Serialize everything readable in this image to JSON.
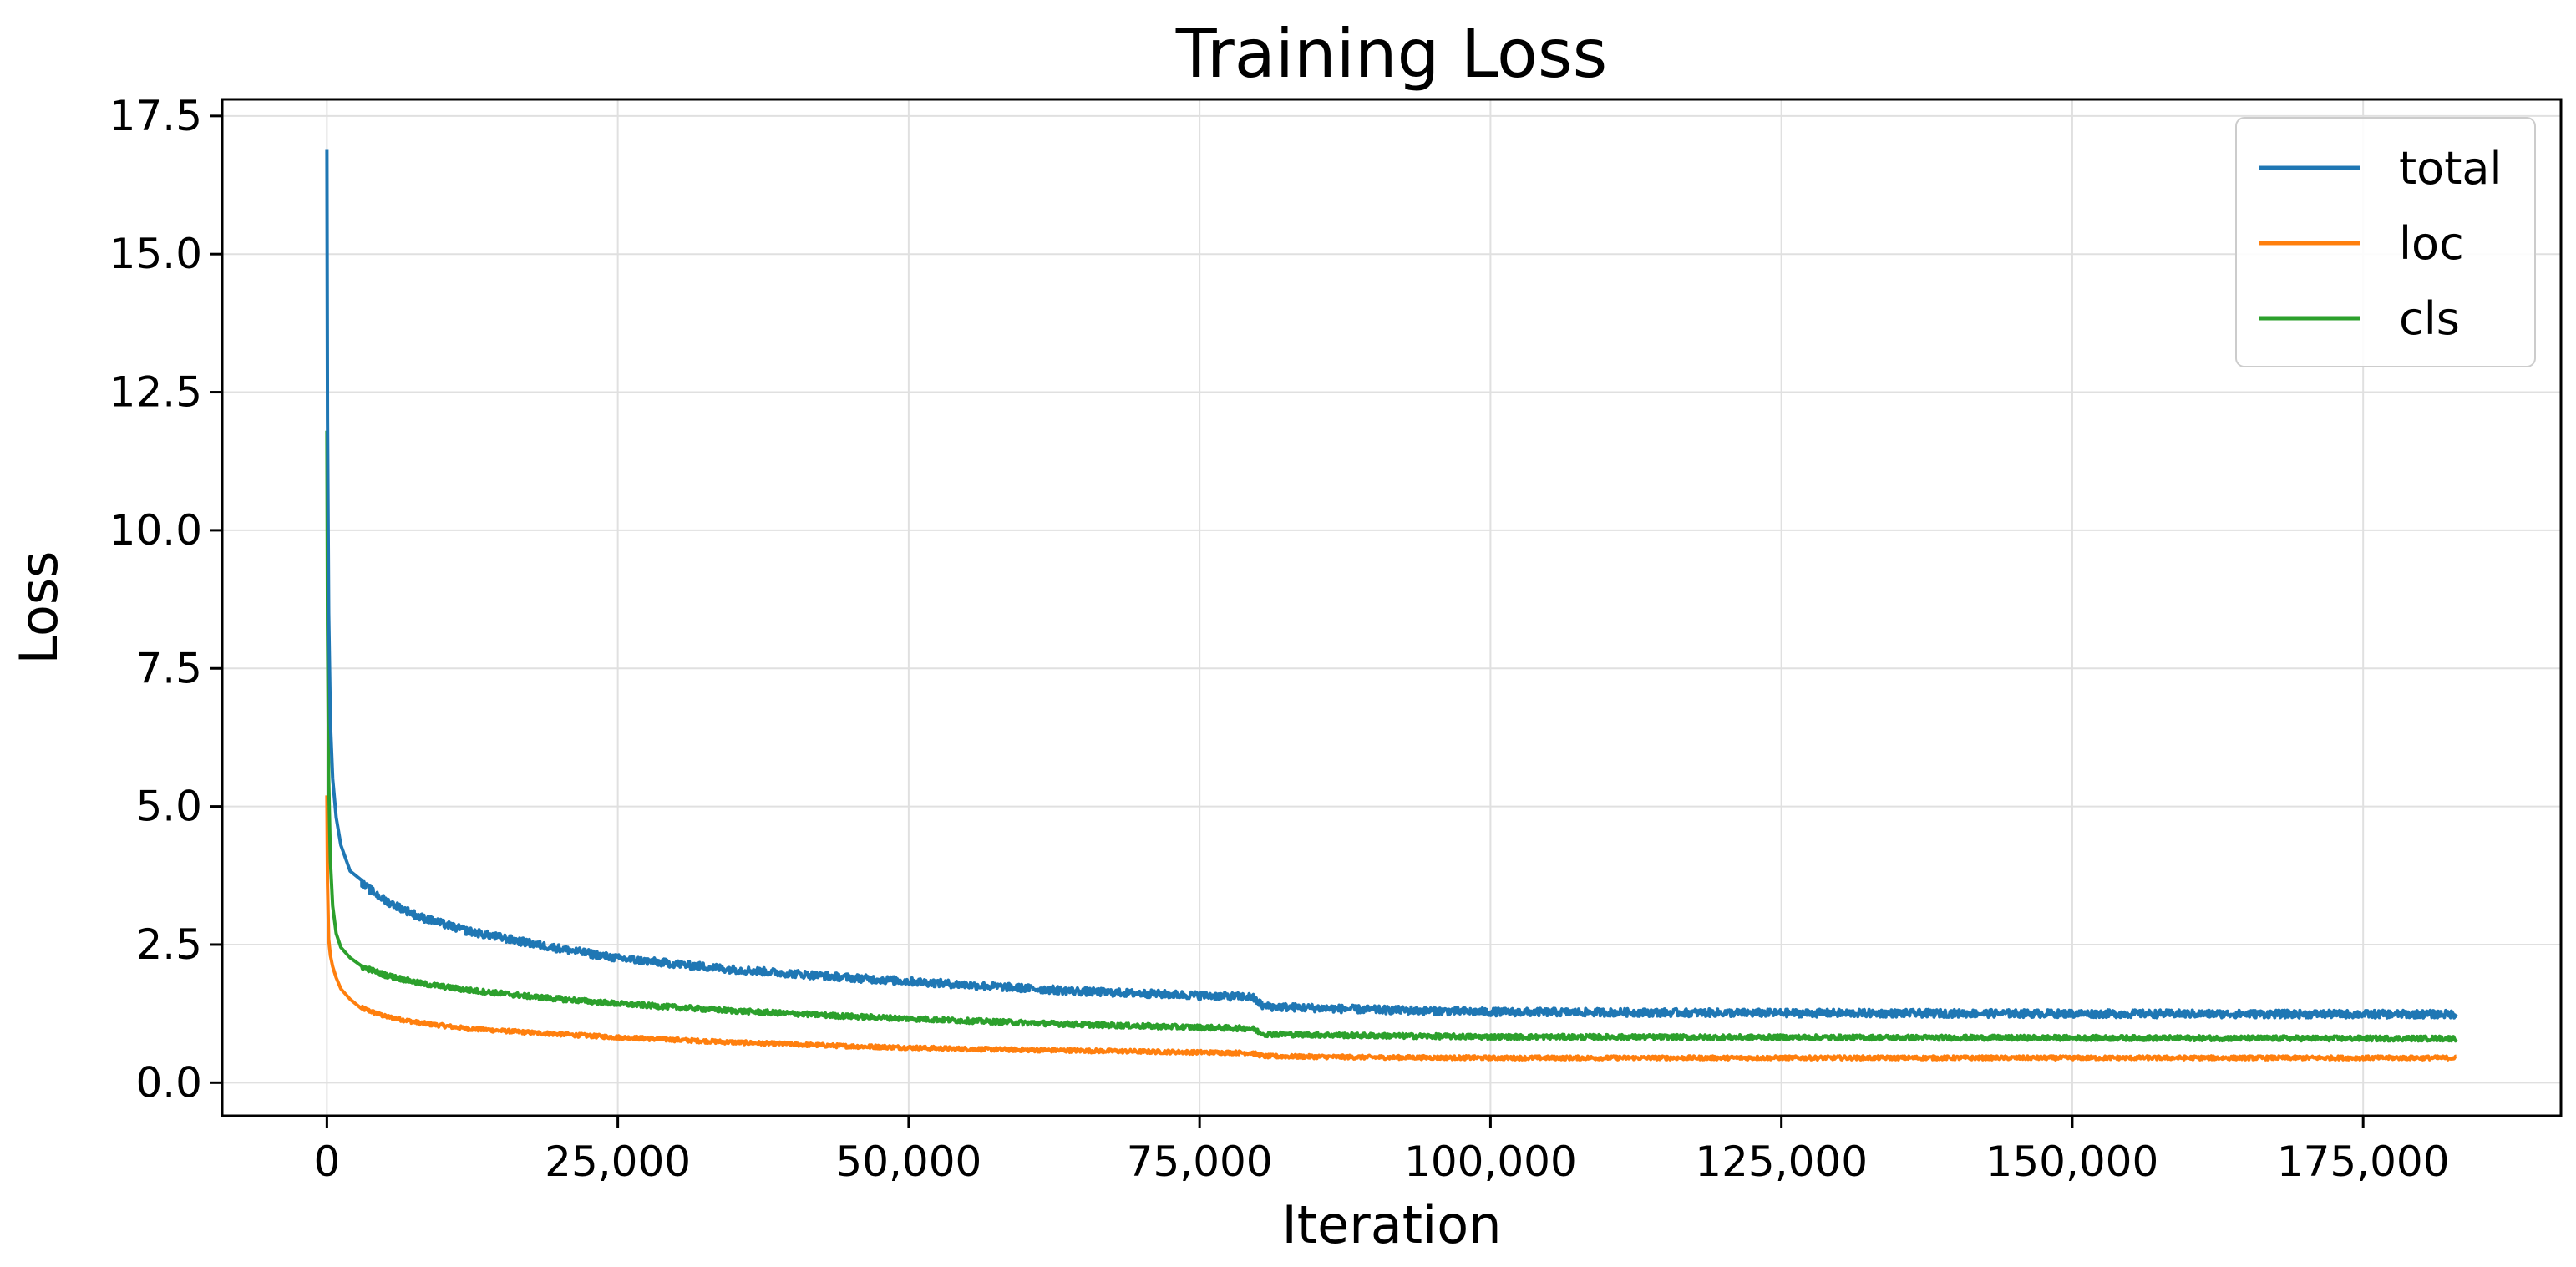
{
  "chart_data": {
    "type": "line",
    "title": "Training Loss",
    "xlabel": "Iteration",
    "ylabel": "Loss",
    "xlim": [
      -9000,
      192000
    ],
    "ylim": [
      -0.6,
      17.8
    ],
    "xticks": [
      0,
      25000,
      50000,
      75000,
      100000,
      125000,
      150000,
      175000
    ],
    "xtick_labels": [
      "0",
      "25,000",
      "50,000",
      "75,000",
      "100,000",
      "125,000",
      "150,000",
      "175,000"
    ],
    "yticks": [
      0,
      2.5,
      5,
      7.5,
      10,
      12.5,
      15,
      17.5
    ],
    "ytick_labels": [
      "0.0",
      "2.5",
      "5.0",
      "7.5",
      "10.0",
      "12.5",
      "15.0",
      "17.5"
    ],
    "grid": true,
    "legend_position": "top-right",
    "x_max": 183000,
    "series": [
      {
        "name": "total",
        "color": "#1f77b4",
        "x": [
          0,
          50,
          150,
          300,
          500,
          800,
          1200,
          2000,
          3000,
          5000,
          8000,
          12000,
          18000,
          25000,
          35000,
          45000,
          55000,
          65000,
          75000,
          79500,
          80500,
          90000,
          100000,
          125000,
          150000,
          175000,
          183000
        ],
        "y": [
          16.9,
          12.0,
          8.5,
          6.5,
          5.5,
          4.8,
          4.3,
          3.9,
          3.6,
          3.3,
          3.0,
          2.75,
          2.5,
          2.25,
          2.05,
          1.9,
          1.77,
          1.65,
          1.58,
          1.55,
          1.38,
          1.32,
          1.28,
          1.26,
          1.25,
          1.24,
          1.24
        ],
        "noise": 0.07
      },
      {
        "name": "loc",
        "color": "#ff7f0e",
        "x": [
          0,
          50,
          150,
          300,
          500,
          800,
          1200,
          2000,
          3000,
          5000,
          8000,
          12000,
          18000,
          25000,
          35000,
          45000,
          55000,
          65000,
          75000,
          79500,
          80500,
          90000,
          100000,
          125000,
          150000,
          175000,
          183000
        ],
        "y": [
          5.2,
          3.6,
          2.6,
          2.3,
          2.1,
          1.9,
          1.7,
          1.5,
          1.35,
          1.2,
          1.08,
          0.98,
          0.9,
          0.82,
          0.73,
          0.66,
          0.61,
          0.58,
          0.55,
          0.54,
          0.48,
          0.46,
          0.45,
          0.45,
          0.45,
          0.45,
          0.45
        ],
        "noise": 0.035
      },
      {
        "name": "cls",
        "color": "#2ca02c",
        "x": [
          0,
          50,
          150,
          300,
          500,
          800,
          1200,
          2000,
          3000,
          5000,
          8000,
          12000,
          18000,
          25000,
          35000,
          45000,
          55000,
          65000,
          75000,
          79500,
          80500,
          90000,
          100000,
          125000,
          150000,
          175000,
          183000
        ],
        "y": [
          11.8,
          8.3,
          5.5,
          4.0,
          3.2,
          2.7,
          2.45,
          2.25,
          2.1,
          1.95,
          1.8,
          1.68,
          1.55,
          1.43,
          1.3,
          1.2,
          1.12,
          1.05,
          1.0,
          0.98,
          0.88,
          0.85,
          0.83,
          0.82,
          0.81,
          0.8,
          0.8
        ],
        "noise": 0.045
      }
    ]
  }
}
